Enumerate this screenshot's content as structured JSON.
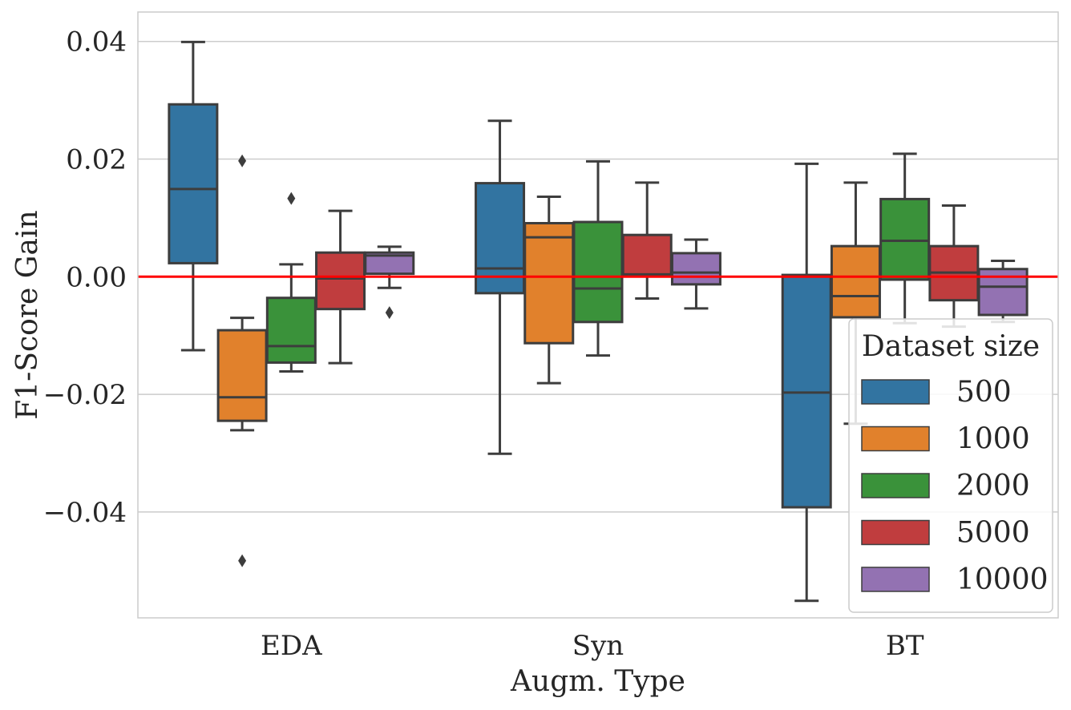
{
  "chart_data": {
    "type": "boxplot",
    "title": "",
    "xlabel": "Augm. Type",
    "ylabel": "F1-Score Gain",
    "categories": [
      "EDA",
      "Syn",
      "BT"
    ],
    "ylim": [
      -0.058,
      0.045
    ],
    "yticks": [
      {
        "value": 0.04,
        "label": "0.04"
      },
      {
        "value": 0.02,
        "label": "0.02"
      },
      {
        "value": 0.0,
        "label": "0.00"
      },
      {
        "value": -0.02,
        "label": "−0.02"
      },
      {
        "value": -0.04,
        "label": "−0.04"
      }
    ],
    "grid": "horizontal",
    "reference_line": {
      "value": 0.0,
      "color": "#ff0000"
    },
    "legend": {
      "title": "Dataset size",
      "location": "lower-right"
    },
    "series": [
      {
        "name": "500",
        "color": "#3274a1",
        "boxes": [
          {
            "category": "EDA",
            "whislo": -0.0125,
            "q1": 0.0023,
            "med": 0.0149,
            "q3": 0.0293,
            "whishi": 0.0399,
            "fliers": []
          },
          {
            "category": "Syn",
            "whislo": -0.0301,
            "q1": -0.0028,
            "med": 0.0014,
            "q3": 0.0159,
            "whishi": 0.0265,
            "fliers": []
          },
          {
            "category": "BT",
            "whislo": -0.0551,
            "q1": -0.0392,
            "med": -0.0197,
            "q3": 0.0003,
            "whishi": 0.0192,
            "fliers": []
          }
        ]
      },
      {
        "name": "1000",
        "color": "#e1812c",
        "boxes": [
          {
            "category": "EDA",
            "whislo": -0.0261,
            "q1": -0.0245,
            "med": -0.0205,
            "q3": -0.0091,
            "whishi": -0.007,
            "fliers": [
              0.0197,
              -0.0483
            ]
          },
          {
            "category": "Syn",
            "whislo": -0.0181,
            "q1": -0.0113,
            "med": 0.0067,
            "q3": 0.0091,
            "whishi": 0.0136,
            "fliers": []
          },
          {
            "category": "BT",
            "whislo": -0.025,
            "q1": -0.0069,
            "med": -0.0033,
            "q3": 0.0052,
            "whishi": 0.016,
            "fliers": []
          }
        ]
      },
      {
        "name": "2000",
        "color": "#3a923a",
        "boxes": [
          {
            "category": "EDA",
            "whislo": -0.0161,
            "q1": -0.0146,
            "med": -0.0118,
            "q3": -0.0036,
            "whishi": 0.0021,
            "fliers": [
              0.0133
            ]
          },
          {
            "category": "Syn",
            "whislo": -0.0134,
            "q1": -0.0077,
            "med": -0.002,
            "q3": 0.0093,
            "whishi": 0.0196,
            "fliers": []
          },
          {
            "category": "BT",
            "whislo": -0.0079,
            "q1": -0.0005,
            "med": 0.0061,
            "q3": 0.0132,
            "whishi": 0.0209,
            "fliers": []
          }
        ]
      },
      {
        "name": "5000",
        "color": "#c03d3e",
        "boxes": [
          {
            "category": "EDA",
            "whislo": -0.0147,
            "q1": -0.0055,
            "med": -0.0003,
            "q3": 0.0041,
            "whishi": 0.0112,
            "fliers": []
          },
          {
            "category": "Syn",
            "whislo": -0.0037,
            "q1": 0.0001,
            "med": 0.0004,
            "q3": 0.0071,
            "whishi": 0.016,
            "fliers": []
          },
          {
            "category": "BT",
            "whislo": -0.0085,
            "q1": -0.004,
            "med": 0.0007,
            "q3": 0.0052,
            "whishi": 0.0121,
            "fliers": []
          }
        ]
      },
      {
        "name": "10000",
        "color": "#9372b2",
        "boxes": [
          {
            "category": "EDA",
            "whislo": -0.0019,
            "q1": 0.0005,
            "med": 0.0036,
            "q3": 0.0041,
            "whishi": 0.0051,
            "fliers": [
              -0.0061
            ]
          },
          {
            "category": "Syn",
            "whislo": -0.0054,
            "q1": -0.0013,
            "med": 0.0007,
            "q3": 0.004,
            "whishi": 0.0063,
            "fliers": []
          },
          {
            "category": "BT",
            "whislo": -0.0077,
            "q1": -0.0065,
            "med": -0.0017,
            "q3": 0.0013,
            "whishi": 0.0027,
            "fliers": []
          }
        ]
      }
    ]
  }
}
